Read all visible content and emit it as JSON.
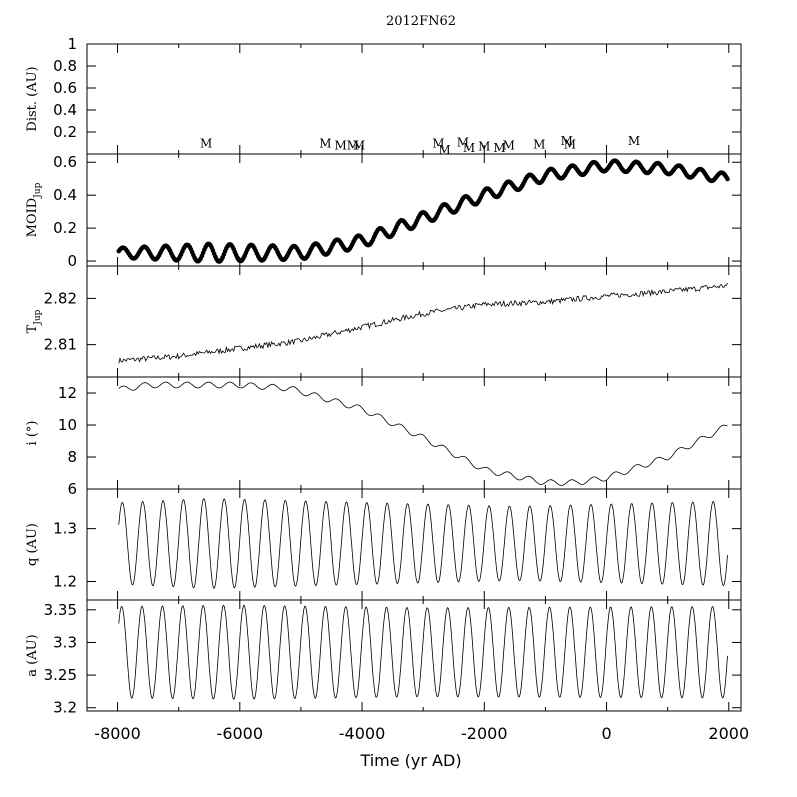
{
  "chart_data": {
    "type": "line",
    "title": "2012FN62",
    "xlabel": "Time (yr AD)",
    "xlim": [
      -8500,
      2200
    ],
    "xticks": [
      -8000,
      -6000,
      -4000,
      -2000,
      0,
      2000
    ],
    "xtick_labels": [
      "-8000",
      "-6000",
      "-4000",
      "-2000",
      "0",
      "2000"
    ],
    "panels": [
      {
        "id": "dist",
        "ylabel": "Dist. (AU)",
        "ylim": [
          0,
          1
        ],
        "yticks": [
          0.2,
          0.4,
          0.6,
          0.8,
          1
        ],
        "ytick_labels": [
          "0.2",
          "0.4",
          "0.6",
          "0.8",
          "1"
        ],
        "style": "markers",
        "marker_label": "M",
        "encounters": [
          {
            "x": -6550,
            "y": 0.06
          },
          {
            "x": -4600,
            "y": 0.06
          },
          {
            "x": -4350,
            "y": 0.04
          },
          {
            "x": -4150,
            "y": 0.04
          },
          {
            "x": -4050,
            "y": 0.04
          },
          {
            "x": -2750,
            "y": 0.06
          },
          {
            "x": -2650,
            "y": 0.0
          },
          {
            "x": -2350,
            "y": 0.07
          },
          {
            "x": -2250,
            "y": 0.02
          },
          {
            "x": -2000,
            "y": 0.03
          },
          {
            "x": -1750,
            "y": 0.02
          },
          {
            "x": -1600,
            "y": 0.04
          },
          {
            "x": -1100,
            "y": 0.05
          },
          {
            "x": -650,
            "y": 0.08
          },
          {
            "x": -600,
            "y": 0.05
          },
          {
            "x": 450,
            "y": 0.08
          }
        ]
      },
      {
        "id": "moid",
        "ylabel": "MOID",
        "ylabel_sub": "Jup",
        "ylim": [
          -0.03,
          0.65
        ],
        "yticks": [
          0,
          0.2,
          0.4,
          0.6
        ],
        "ytick_labels": [
          "0",
          "0.2",
          "0.4",
          "0.6"
        ],
        "style": "dots",
        "trend": {
          "x": [
            -8000,
            -5000,
            -4000,
            -2000,
            -1000,
            0,
            1000,
            2000
          ],
          "y": [
            0.05,
            0.05,
            0.12,
            0.4,
            0.52,
            0.58,
            0.56,
            0.5
          ]
        },
        "oscillation": {
          "period_yr": 350,
          "amplitude": [
            {
              "x": -8000,
              "a": 0.03
            },
            {
              "x": -6500,
              "a": 0.055
            },
            {
              "x": -5000,
              "a": 0.04
            },
            {
              "x": -1500,
              "a": 0.035
            },
            {
              "x": 2000,
              "a": 0.03
            }
          ]
        }
      },
      {
        "id": "tjup",
        "ylabel": "T",
        "ylabel_sub": "Jup",
        "ylim": [
          2.803,
          2.827
        ],
        "yticks": [
          2.81,
          2.82
        ],
        "ytick_labels": [
          "2.81",
          "2.82"
        ],
        "style": "jagged-line",
        "trend": {
          "x": [
            -8000,
            -7000,
            -6000,
            -5000,
            -4000,
            -3000,
            -2000,
            -1000,
            0,
            1000,
            2000
          ],
          "y": [
            2.8065,
            2.8075,
            2.8092,
            2.8108,
            2.8138,
            2.8167,
            2.8187,
            2.8192,
            2.8205,
            2.8215,
            2.8228
          ]
        },
        "noise": 0.0006
      },
      {
        "id": "inc",
        "ylabel": "i (°)",
        "ylim": [
          6,
          13
        ],
        "yticks": [
          6,
          8,
          10,
          12
        ],
        "ytick_labels": [
          "6",
          "8",
          "10",
          "12"
        ],
        "style": "line",
        "trend": {
          "x": [
            -8000,
            -7500,
            -6000,
            -5200,
            -4000,
            -3000,
            -2000,
            -1000,
            -500,
            0,
            1000,
            2000
          ],
          "y": [
            12.2,
            12.5,
            12.5,
            12.3,
            11.0,
            9.2,
            7.2,
            6.4,
            6.4,
            6.7,
            8.0,
            10.0
          ]
        },
        "oscillation": {
          "period_yr": 350,
          "amplitude_const": 0.18
        }
      },
      {
        "id": "q",
        "ylabel": "q (AU)",
        "ylim": [
          1.165,
          1.375
        ],
        "yticks": [
          1.2,
          1.3
        ],
        "ytick_labels": [
          "1.2",
          "1.3"
        ],
        "style": "line",
        "cycles": 30,
        "center": 1.272,
        "amplitude": [
          {
            "x": -8000,
            "a": 0.077
          },
          {
            "x": -6500,
            "a": 0.085
          },
          {
            "x": -1500,
            "a": 0.07
          },
          {
            "x": 2000,
            "a": 0.08
          }
        ]
      },
      {
        "id": "a",
        "ylabel": "a (AU)",
        "ylim": [
          3.195,
          3.365
        ],
        "yticks": [
          3.2,
          3.25,
          3.3,
          3.35
        ],
        "ytick_labels": [
          "3.2",
          "3.25",
          "3.3",
          "3.35"
        ],
        "style": "line",
        "cycles": 30,
        "center": 3.285,
        "amplitude": [
          {
            "x": -8000,
            "a": 0.07
          },
          {
            "x": -6000,
            "a": 0.072
          },
          {
            "x": -3000,
            "a": 0.068
          },
          {
            "x": 2000,
            "a": 0.07
          }
        ]
      }
    ]
  }
}
